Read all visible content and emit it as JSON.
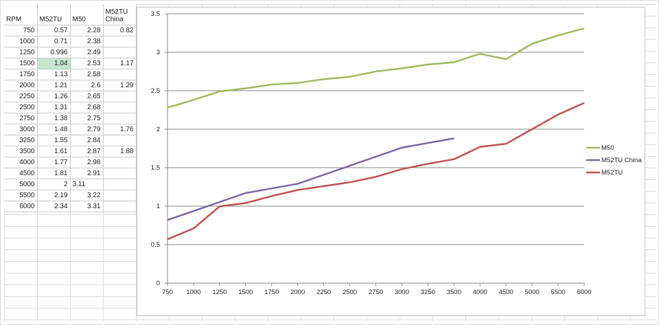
{
  "table": {
    "headers": [
      "RPM",
      "M52TU",
      "M50",
      "M52TU China"
    ],
    "rows": [
      [
        "750",
        "0.57",
        "2.28",
        "0.82"
      ],
      [
        "1000",
        "0.71",
        "2.38",
        ""
      ],
      [
        "1250",
        "0.996",
        "2.49",
        ""
      ],
      [
        "1500",
        "1.04",
        "2.53",
        "1.17"
      ],
      [
        "1750",
        "1.13",
        "2.58",
        ""
      ],
      [
        "2000",
        "1.21",
        "2.6",
        "1.29"
      ],
      [
        "2250",
        "1.26",
        "2.65",
        ""
      ],
      [
        "2500",
        "1.31",
        "2.68",
        ""
      ],
      [
        "2750",
        "1.38",
        "2.75",
        ""
      ],
      [
        "3000",
        "1.48",
        "2.79",
        "1.76"
      ],
      [
        "3250",
        "1.55",
        "2.84",
        ""
      ],
      [
        "3500",
        "1.61",
        "2.87",
        "1.88"
      ],
      [
        "4000",
        "1.77",
        "2.98",
        ""
      ],
      [
        "4500",
        "1.81",
        "2.91",
        ""
      ],
      [
        "5000",
        "2",
        "3.11",
        ""
      ],
      [
        "5500",
        "2.19",
        "3.22",
        ""
      ],
      [
        "6000",
        "2.34",
        "3.31",
        ""
      ]
    ],
    "selected_cell": {
      "row": 3,
      "col": 1
    }
  },
  "chart_data": {
    "type": "line",
    "categories": [
      "750",
      "1000",
      "1250",
      "1500",
      "1750",
      "2000",
      "2250",
      "2500",
      "2750",
      "3000",
      "3250",
      "3500",
      "4000",
      "4500",
      "5000",
      "5500",
      "6000"
    ],
    "ylim": [
      0,
      3.5
    ],
    "yticks": [
      "0",
      "0.5",
      "1",
      "1.5",
      "2",
      "2.5",
      "3",
      "3.5"
    ],
    "grid": true,
    "legend_position": "right",
    "series": [
      {
        "name": "M50",
        "color": "#9bbb59",
        "values": [
          2.28,
          2.38,
          2.49,
          2.53,
          2.58,
          2.6,
          2.65,
          2.68,
          2.75,
          2.79,
          2.84,
          2.87,
          2.98,
          2.91,
          3.11,
          3.22,
          3.31
        ]
      },
      {
        "name": "M52TU China",
        "color": "#8064a2",
        "values": [
          0.82,
          null,
          null,
          1.17,
          null,
          1.29,
          null,
          null,
          null,
          1.76,
          null,
          1.88,
          null,
          null,
          null,
          null,
          null
        ]
      },
      {
        "name": "M52TU",
        "color": "#c0504d",
        "values": [
          0.57,
          0.71,
          0.996,
          1.04,
          1.13,
          1.21,
          1.26,
          1.31,
          1.38,
          1.48,
          1.55,
          1.61,
          1.77,
          1.81,
          2,
          2.19,
          2.34
        ]
      }
    ]
  }
}
